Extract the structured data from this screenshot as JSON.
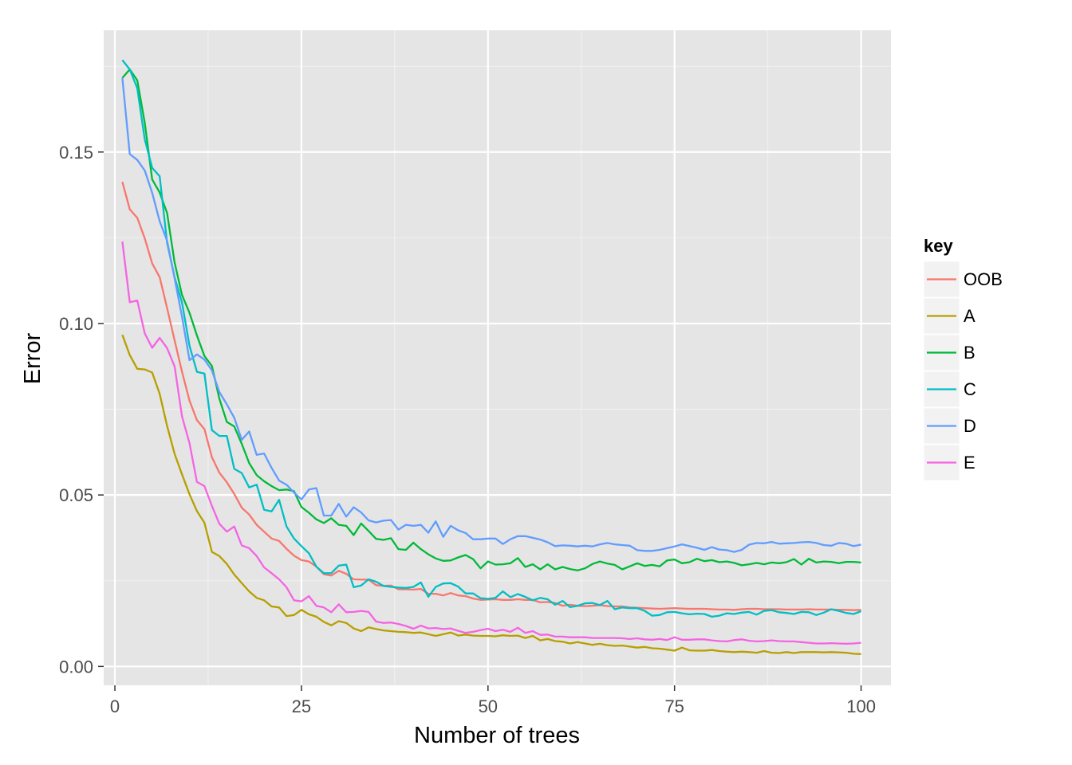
{
  "chart_data": {
    "type": "line",
    "xlabel": "Number of trees",
    "ylabel": "Error",
    "xlim": [
      -1.5,
      104
    ],
    "ylim": [
      -0.0055,
      0.1855
    ],
    "x_ticks": [
      0,
      25,
      50,
      75,
      100
    ],
    "x_tick_labels": [
      "0",
      "25",
      "50",
      "75",
      "100"
    ],
    "y_ticks": [
      0.0,
      0.05,
      0.1,
      0.15
    ],
    "y_tick_labels": [
      "0.00",
      "0.05",
      "0.10",
      "0.15"
    ],
    "grid": true,
    "legend_position": "right",
    "legend_title": "key",
    "x": [
      1,
      2,
      3,
      4,
      5,
      6,
      7,
      8,
      9,
      10,
      11,
      12,
      13,
      14,
      15,
      16,
      17,
      18,
      19,
      20,
      21,
      22,
      23,
      24,
      25,
      26,
      27,
      28,
      29,
      30,
      31,
      32,
      33,
      34,
      35,
      36,
      37,
      38,
      39,
      40,
      41,
      42,
      43,
      44,
      45,
      46,
      47,
      48,
      49,
      50,
      51,
      52,
      53,
      54,
      55,
      56,
      57,
      58,
      59,
      60,
      61,
      62,
      63,
      64,
      65,
      66,
      67,
      68,
      69,
      70,
      71,
      72,
      73,
      74,
      75,
      76,
      77,
      78,
      79,
      80,
      81,
      82,
      83,
      84,
      85,
      86,
      87,
      88,
      89,
      90,
      91,
      92,
      93,
      94,
      95,
      96,
      97,
      98,
      99,
      100
    ],
    "series": [
      {
        "name": "OOB",
        "color": "#F8766D",
        "values": [
          0.1413,
          0.1333,
          0.1308,
          0.1248,
          0.1175,
          0.1135,
          0.1045,
          0.0951,
          0.0859,
          0.0775,
          0.0718,
          0.0692,
          0.061,
          0.0565,
          0.0537,
          0.0503,
          0.0463,
          0.0443,
          0.0413,
          0.0393,
          0.0373,
          0.0366,
          0.0343,
          0.0323,
          0.031,
          0.0306,
          0.0291,
          0.0269,
          0.0265,
          0.0279,
          0.027,
          0.0254,
          0.0253,
          0.0253,
          0.0237,
          0.0235,
          0.0236,
          0.0225,
          0.0225,
          0.0224,
          0.0226,
          0.0212,
          0.0212,
          0.0207,
          0.0214,
          0.0207,
          0.0205,
          0.0198,
          0.0194,
          0.0195,
          0.0196,
          0.0194,
          0.0194,
          0.0196,
          0.0194,
          0.0194,
          0.0187,
          0.0188,
          0.0185,
          0.0177,
          0.018,
          0.0177,
          0.0176,
          0.0177,
          0.0179,
          0.0176,
          0.0175,
          0.0175,
          0.0172,
          0.0171,
          0.017,
          0.0169,
          0.0168,
          0.0169,
          0.017,
          0.0169,
          0.0168,
          0.0168,
          0.0168,
          0.0167,
          0.0166,
          0.0166,
          0.0165,
          0.0167,
          0.0168,
          0.0168,
          0.0167,
          0.0167,
          0.0167,
          0.0166,
          0.0166,
          0.0166,
          0.0167,
          0.0166,
          0.0166,
          0.0166,
          0.0165,
          0.0165,
          0.0164,
          0.0165
        ]
      },
      {
        "name": "A",
        "color": "#B79F00",
        "values": [
          0.0967,
          0.0908,
          0.0868,
          0.0866,
          0.0857,
          0.0795,
          0.0701,
          0.062,
          0.056,
          0.0502,
          0.0453,
          0.0419,
          0.0334,
          0.0322,
          0.0299,
          0.0268,
          0.0243,
          0.0219,
          0.02,
          0.0193,
          0.0175,
          0.0172,
          0.0147,
          0.015,
          0.0165,
          0.0152,
          0.0145,
          0.013,
          0.012,
          0.0132,
          0.0127,
          0.0111,
          0.0103,
          0.0114,
          0.0109,
          0.0105,
          0.0103,
          0.0101,
          0.01,
          0.0098,
          0.0099,
          0.0094,
          0.0089,
          0.0094,
          0.0099,
          0.009,
          0.0093,
          0.009,
          0.0089,
          0.0089,
          0.0088,
          0.0091,
          0.0089,
          0.009,
          0.0083,
          0.0089,
          0.0076,
          0.008,
          0.0074,
          0.0072,
          0.0067,
          0.0071,
          0.0067,
          0.0063,
          0.0066,
          0.0062,
          0.006,
          0.0061,
          0.0058,
          0.0055,
          0.0057,
          0.0053,
          0.0052,
          0.0049,
          0.0046,
          0.0055,
          0.0047,
          0.0046,
          0.0046,
          0.0048,
          0.0045,
          0.0043,
          0.0042,
          0.0043,
          0.0042,
          0.004,
          0.0045,
          0.004,
          0.0039,
          0.0042,
          0.0039,
          0.0042,
          0.0042,
          0.0042,
          0.0041,
          0.0042,
          0.0041,
          0.004,
          0.0037,
          0.0036
        ]
      },
      {
        "name": "B",
        "color": "#00BA38",
        "values": [
          0.1716,
          0.1741,
          0.1709,
          0.1585,
          0.142,
          0.1382,
          0.1322,
          0.1178,
          0.1083,
          0.1031,
          0.0965,
          0.0905,
          0.0876,
          0.0781,
          0.0713,
          0.07,
          0.0649,
          0.0593,
          0.0558,
          0.054,
          0.0526,
          0.0514,
          0.0516,
          0.0511,
          0.0465,
          0.0448,
          0.0429,
          0.0418,
          0.0432,
          0.0413,
          0.041,
          0.0383,
          0.0417,
          0.0395,
          0.0372,
          0.0369,
          0.0374,
          0.0342,
          0.034,
          0.0361,
          0.0342,
          0.0327,
          0.0315,
          0.0308,
          0.0309,
          0.0318,
          0.0325,
          0.0313,
          0.0286,
          0.0306,
          0.0297,
          0.0298,
          0.0301,
          0.0316,
          0.029,
          0.0298,
          0.0283,
          0.0298,
          0.0283,
          0.029,
          0.0284,
          0.028,
          0.0286,
          0.0299,
          0.0306,
          0.03,
          0.0296,
          0.0283,
          0.0292,
          0.0301,
          0.0293,
          0.0296,
          0.0292,
          0.0309,
          0.0312,
          0.0301,
          0.0304,
          0.0314,
          0.0307,
          0.031,
          0.0304,
          0.0306,
          0.0302,
          0.0295,
          0.0298,
          0.0302,
          0.0298,
          0.0303,
          0.0301,
          0.0304,
          0.0313,
          0.0297,
          0.0314,
          0.0303,
          0.0306,
          0.0305,
          0.0301,
          0.0305,
          0.0305,
          0.0303
        ]
      },
      {
        "name": "C",
        "color": "#00BFC4",
        "values": [
          0.1768,
          0.1741,
          0.1686,
          0.1537,
          0.1454,
          0.1429,
          0.1235,
          0.1135,
          0.1061,
          0.0935,
          0.0859,
          0.0854,
          0.0689,
          0.0672,
          0.0672,
          0.0576,
          0.0564,
          0.0522,
          0.053,
          0.0457,
          0.0452,
          0.0486,
          0.0408,
          0.0373,
          0.0351,
          0.033,
          0.0291,
          0.0272,
          0.0272,
          0.0294,
          0.0297,
          0.0231,
          0.0236,
          0.0254,
          0.0247,
          0.0235,
          0.0232,
          0.023,
          0.0229,
          0.0232,
          0.0245,
          0.0203,
          0.0232,
          0.0242,
          0.0243,
          0.0233,
          0.0213,
          0.0213,
          0.0199,
          0.0197,
          0.02,
          0.0219,
          0.0202,
          0.0211,
          0.0203,
          0.0193,
          0.02,
          0.0196,
          0.018,
          0.0191,
          0.0173,
          0.0177,
          0.0184,
          0.0185,
          0.0179,
          0.0191,
          0.0167,
          0.0172,
          0.017,
          0.017,
          0.0162,
          0.0148,
          0.015,
          0.0158,
          0.0159,
          0.0155,
          0.0152,
          0.0154,
          0.0153,
          0.0145,
          0.0148,
          0.0155,
          0.0153,
          0.0157,
          0.0159,
          0.0151,
          0.0162,
          0.0164,
          0.0158,
          0.0156,
          0.0153,
          0.0159,
          0.0158,
          0.015,
          0.0157,
          0.0167,
          0.0162,
          0.0156,
          0.0153,
          0.0161
        ]
      },
      {
        "name": "D",
        "color": "#619CFF",
        "values": [
          0.1716,
          0.1494,
          0.1477,
          0.1446,
          0.1381,
          0.1298,
          0.1241,
          0.1132,
          0.102,
          0.0893,
          0.091,
          0.0895,
          0.0863,
          0.08,
          0.0764,
          0.0725,
          0.0661,
          0.0685,
          0.0617,
          0.0621,
          0.0579,
          0.0542,
          0.053,
          0.0507,
          0.0487,
          0.0516,
          0.052,
          0.044,
          0.044,
          0.0474,
          0.0437,
          0.0464,
          0.0449,
          0.0426,
          0.042,
          0.0425,
          0.0427,
          0.0399,
          0.0413,
          0.041,
          0.0413,
          0.039,
          0.0423,
          0.0378,
          0.041,
          0.0397,
          0.0389,
          0.0371,
          0.0371,
          0.0373,
          0.0373,
          0.0357,
          0.0371,
          0.038,
          0.038,
          0.0375,
          0.037,
          0.0362,
          0.0351,
          0.0353,
          0.0352,
          0.035,
          0.0352,
          0.035,
          0.0356,
          0.036,
          0.0356,
          0.0354,
          0.0352,
          0.0339,
          0.0337,
          0.0337,
          0.034,
          0.0345,
          0.035,
          0.0356,
          0.0351,
          0.0346,
          0.034,
          0.0348,
          0.0341,
          0.0339,
          0.0334,
          0.034,
          0.0355,
          0.036,
          0.0359,
          0.0363,
          0.0358,
          0.0359,
          0.036,
          0.0362,
          0.0363,
          0.036,
          0.0354,
          0.0352,
          0.036,
          0.0358,
          0.0351,
          0.0355
        ]
      },
      {
        "name": "E",
        "color": "#F564E3",
        "values": [
          0.1239,
          0.1062,
          0.1067,
          0.0971,
          0.0929,
          0.0958,
          0.0928,
          0.0875,
          0.0729,
          0.0651,
          0.0538,
          0.0526,
          0.0468,
          0.0416,
          0.0393,
          0.0408,
          0.0353,
          0.0345,
          0.0322,
          0.0289,
          0.0272,
          0.0254,
          0.0231,
          0.0193,
          0.019,
          0.0205,
          0.0177,
          0.0172,
          0.0158,
          0.0181,
          0.0158,
          0.0159,
          0.0162,
          0.0159,
          0.0131,
          0.0127,
          0.0128,
          0.0124,
          0.0118,
          0.011,
          0.0119,
          0.0111,
          0.0112,
          0.0109,
          0.0111,
          0.0104,
          0.0098,
          0.0101,
          0.0106,
          0.011,
          0.0103,
          0.0107,
          0.0101,
          0.0113,
          0.0098,
          0.0103,
          0.0092,
          0.0093,
          0.0087,
          0.0087,
          0.0085,
          0.0085,
          0.0085,
          0.0083,
          0.0083,
          0.0083,
          0.0083,
          0.0082,
          0.008,
          0.0082,
          0.0079,
          0.0078,
          0.008,
          0.0077,
          0.0085,
          0.0078,
          0.0078,
          0.0079,
          0.0079,
          0.0076,
          0.0074,
          0.0073,
          0.0077,
          0.0079,
          0.0075,
          0.0073,
          0.0074,
          0.0076,
          0.0074,
          0.0073,
          0.0073,
          0.0071,
          0.0069,
          0.0067,
          0.0067,
          0.0068,
          0.0067,
          0.0066,
          0.0067,
          0.0069
        ]
      }
    ]
  }
}
